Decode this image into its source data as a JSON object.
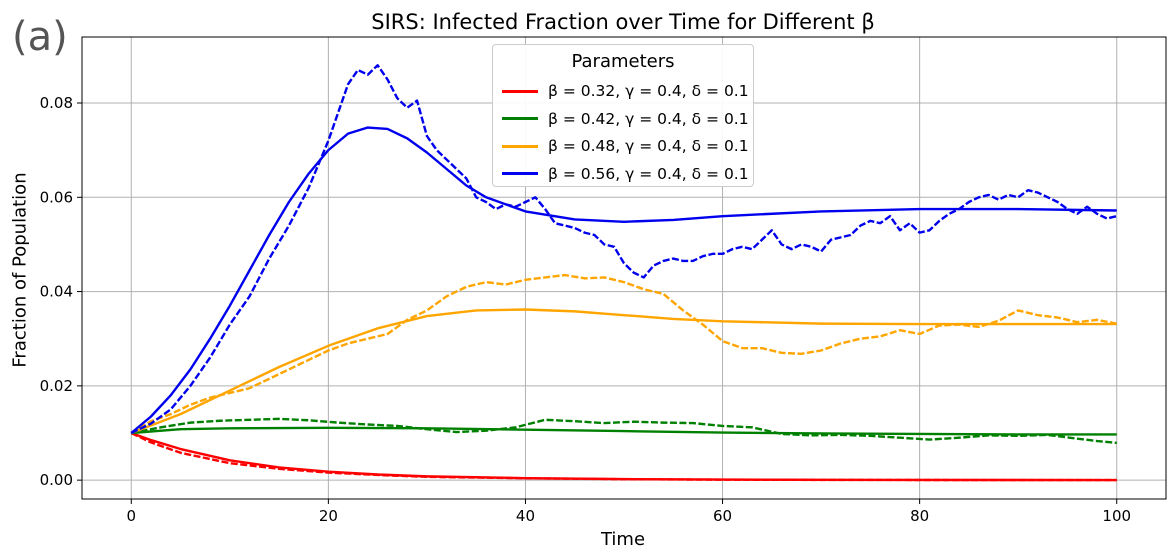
{
  "panel_label": "(a)",
  "chart_data": {
    "type": "line",
    "title": "SIRS: Infected Fraction over Time for Different β",
    "xlabel": "Time",
    "ylabel": "Fraction of Population",
    "xlim": [
      -5,
      105
    ],
    "ylim": [
      -0.004,
      0.094
    ],
    "xticks": [
      0,
      20,
      40,
      60,
      80,
      100
    ],
    "xtick_labels": [
      "0",
      "20",
      "40",
      "60",
      "80",
      "100"
    ],
    "yticks": [
      0.0,
      0.02,
      0.04,
      0.06,
      0.08
    ],
    "ytick_labels": [
      "0.00",
      "0.02",
      "0.04",
      "0.06",
      "0.08"
    ],
    "grid": true,
    "legend_title": "Parameters",
    "legend_position": "top-center",
    "series": [
      {
        "name": "β = 0.32, γ = 0.4, δ = 0.1",
        "color": "#ff0000",
        "deterministic": {
          "x": [
            0,
            2,
            5,
            10,
            15,
            20,
            25,
            30,
            40,
            50,
            60,
            70,
            80,
            90,
            100
          ],
          "y": [
            0.01,
            0.0085,
            0.0066,
            0.0042,
            0.0027,
            0.0018,
            0.0012,
            0.0008,
            0.00042,
            0.00022,
            0.00012,
            7e-05,
            4e-05,
            3e-05,
            2e-05
          ]
        },
        "stochastic": {
          "x": [
            0,
            2,
            5,
            10,
            15,
            20,
            25,
            30,
            40,
            50,
            60,
            70,
            80,
            90,
            100
          ],
          "y": [
            0.01,
            0.008,
            0.0058,
            0.0036,
            0.0024,
            0.0016,
            0.0011,
            0.0007,
            0.0004,
            0.0002,
            0.0001,
            5e-05,
            3e-05,
            2e-05,
            1e-05
          ]
        }
      },
      {
        "name": "β = 0.42, γ = 0.4, δ = 0.1",
        "color": "#008000",
        "deterministic": {
          "x": [
            0,
            5,
            10,
            20,
            30,
            40,
            50,
            60,
            70,
            80,
            90,
            100
          ],
          "y": [
            0.01,
            0.0108,
            0.011,
            0.0111,
            0.011,
            0.0107,
            0.0104,
            0.0101,
            0.0099,
            0.0098,
            0.0097,
            0.0097
          ]
        },
        "stochastic": {
          "x": [
            0,
            3,
            6,
            9,
            12,
            15,
            18,
            21,
            24,
            27,
            30,
            33,
            36,
            39,
            42,
            45,
            48,
            51,
            54,
            57,
            60,
            63,
            66,
            69,
            72,
            75,
            78,
            81,
            84,
            87,
            90,
            93,
            96,
            98,
            100
          ],
          "y": [
            0.01,
            0.0112,
            0.0122,
            0.0126,
            0.0128,
            0.013,
            0.0127,
            0.0122,
            0.0118,
            0.0115,
            0.0108,
            0.0102,
            0.0105,
            0.0112,
            0.0128,
            0.0125,
            0.0121,
            0.0124,
            0.0122,
            0.0121,
            0.0115,
            0.0112,
            0.0098,
            0.0095,
            0.0096,
            0.0094,
            0.009,
            0.0086,
            0.009,
            0.0095,
            0.0094,
            0.0096,
            0.0088,
            0.0083,
            0.0079
          ]
        }
      },
      {
        "name": "β = 0.48, γ = 0.4, δ = 0.1",
        "color": "#ffa500",
        "deterministic": {
          "x": [
            0,
            5,
            10,
            15,
            20,
            25,
            30,
            35,
            40,
            45,
            50,
            55,
            60,
            70,
            80,
            90,
            100
          ],
          "y": [
            0.01,
            0.014,
            0.019,
            0.024,
            0.0285,
            0.0322,
            0.0348,
            0.036,
            0.0362,
            0.0358,
            0.035,
            0.0342,
            0.0337,
            0.0332,
            0.0331,
            0.0331,
            0.0331
          ]
        },
        "stochastic": {
          "x": [
            0,
            2,
            4,
            6,
            8,
            10,
            12,
            14,
            16,
            18,
            20,
            22,
            24,
            26,
            28,
            30,
            32,
            34,
            36,
            38,
            40,
            42,
            44,
            46,
            48,
            50,
            52,
            54,
            56,
            58,
            60,
            62,
            64,
            66,
            68,
            70,
            72,
            74,
            76,
            78,
            80,
            82,
            84,
            86,
            88,
            90,
            92,
            94,
            96,
            98,
            100
          ],
          "y": [
            0.01,
            0.0125,
            0.014,
            0.016,
            0.0175,
            0.0185,
            0.0195,
            0.0215,
            0.0235,
            0.0255,
            0.0275,
            0.029,
            0.03,
            0.031,
            0.034,
            0.036,
            0.039,
            0.041,
            0.042,
            0.0415,
            0.0425,
            0.043,
            0.0435,
            0.0428,
            0.043,
            0.042,
            0.0405,
            0.0395,
            0.036,
            0.033,
            0.0295,
            0.028,
            0.028,
            0.027,
            0.0268,
            0.0275,
            0.029,
            0.03,
            0.0305,
            0.0318,
            0.031,
            0.0328,
            0.033,
            0.0325,
            0.0338,
            0.036,
            0.035,
            0.0345,
            0.0335,
            0.034,
            0.0332
          ]
        }
      },
      {
        "name": "β = 0.56, γ = 0.4, δ = 0.1",
        "color": "#0000ee",
        "deterministic": {
          "x": [
            0,
            2,
            4,
            6,
            8,
            10,
            12,
            14,
            16,
            18,
            20,
            22,
            24,
            26,
            28,
            30,
            32,
            34,
            36,
            40,
            45,
            50,
            55,
            60,
            70,
            80,
            90,
            100
          ],
          "y": [
            0.01,
            0.0135,
            0.018,
            0.0235,
            0.03,
            0.037,
            0.0445,
            0.052,
            0.059,
            0.065,
            0.07,
            0.0735,
            0.0748,
            0.0745,
            0.0725,
            0.0695,
            0.066,
            0.0625,
            0.06,
            0.057,
            0.0553,
            0.0548,
            0.0552,
            0.056,
            0.057,
            0.0575,
            0.0575,
            0.0572
          ]
        },
        "stochastic": {
          "x": [
            0,
            2,
            4,
            6,
            8,
            10,
            12,
            14,
            16,
            18,
            20,
            21,
            22,
            23,
            24,
            25,
            26,
            27,
            28,
            29,
            30,
            31,
            32,
            33,
            34,
            35,
            36,
            37,
            38,
            39,
            40,
            41,
            42,
            43,
            44,
            45,
            46,
            47,
            48,
            49,
            50,
            51,
            52,
            53,
            54,
            55,
            56,
            57,
            58,
            59,
            60,
            61,
            62,
            63,
            64,
            65,
            66,
            67,
            68,
            69,
            70,
            71,
            72,
            73,
            74,
            75,
            76,
            77,
            78,
            79,
            80,
            81,
            82,
            83,
            84,
            85,
            86,
            87,
            88,
            89,
            90,
            91,
            92,
            93,
            94,
            95,
            96,
            97,
            98,
            99,
            100
          ],
          "y": [
            0.01,
            0.012,
            0.015,
            0.02,
            0.026,
            0.033,
            0.039,
            0.047,
            0.054,
            0.062,
            0.072,
            0.078,
            0.084,
            0.087,
            0.086,
            0.088,
            0.085,
            0.081,
            0.079,
            0.0805,
            0.073,
            0.07,
            0.068,
            0.066,
            0.064,
            0.06,
            0.059,
            0.0575,
            0.0585,
            0.058,
            0.059,
            0.06,
            0.0575,
            0.0545,
            0.054,
            0.0535,
            0.0525,
            0.052,
            0.05,
            0.0495,
            0.046,
            0.044,
            0.043,
            0.0455,
            0.0465,
            0.047,
            0.0465,
            0.0465,
            0.0475,
            0.048,
            0.048,
            0.049,
            0.0495,
            0.049,
            0.051,
            0.053,
            0.05,
            0.049,
            0.05,
            0.0495,
            0.0485,
            0.051,
            0.0515,
            0.052,
            0.054,
            0.055,
            0.0545,
            0.056,
            0.053,
            0.0545,
            0.0525,
            0.053,
            0.055,
            0.0565,
            0.0575,
            0.059,
            0.06,
            0.0605,
            0.0595,
            0.0605,
            0.06,
            0.0615,
            0.061,
            0.06,
            0.059,
            0.0575,
            0.0565,
            0.058,
            0.0565,
            0.0555,
            0.056
          ]
        }
      }
    ]
  }
}
